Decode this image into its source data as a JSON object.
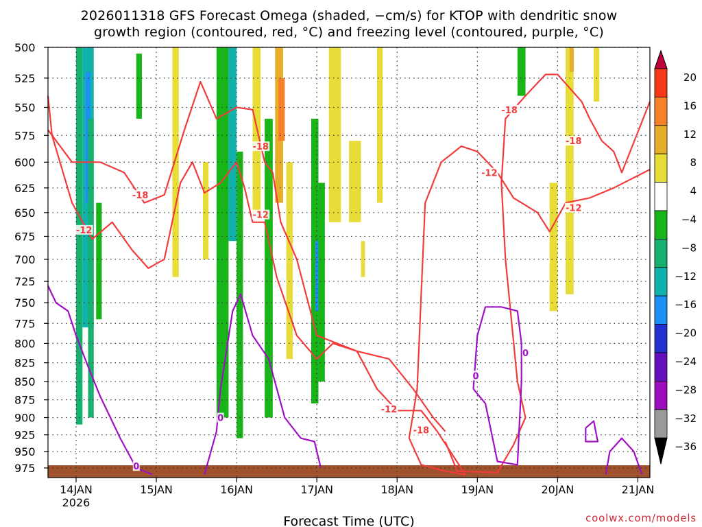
{
  "chart_data": {
    "type": "heatmap",
    "title_line1": "2026011318 GFS Forecast Omega (shaded, −cm/s) for KTOP with dendritic snow",
    "title_line2": "growth region (contoured, red, °C) and freezing level (contoured, purple, °C)",
    "xlabel": "Forecast Time (UTC)",
    "x_ticks": [
      "14JAN",
      "15JAN",
      "16JAN",
      "17JAN",
      "18JAN",
      "19JAN",
      "20JAN",
      "21JAN"
    ],
    "x_year_label": "2026",
    "x_range_days": [
      -0.35,
      7.15
    ],
    "y_ticks": [
      500,
      525,
      550,
      575,
      600,
      625,
      650,
      675,
      700,
      725,
      750,
      775,
      800,
      825,
      850,
      875,
      900,
      925,
      950,
      975
    ],
    "y_range_hpa": [
      500,
      990
    ],
    "y_scale": "log-pressure",
    "grid": true,
    "colorbar": {
      "labels": [
        "20",
        "16",
        "12",
        "8",
        "4",
        "−4",
        "−8",
        "−12",
        "−16",
        "−20",
        "−24",
        "−28",
        "−32",
        "−36"
      ],
      "colors": [
        "#c1003c",
        "#f23a1a",
        "#f5822a",
        "#e6ae2a",
        "#e8dc38",
        "#ffffff",
        "#19b419",
        "#17b06e",
        "#12b2ac",
        "#1e8ff5",
        "#2432ce",
        "#6410bb",
        "#9a0fb9",
        "#9a9a9a",
        "#000000"
      ]
    },
    "contour_labels": {
      "dgz_minus18": "-18",
      "dgz_minus12": "-12",
      "freezing_0": "0"
    },
    "omega_cells": [
      {
        "t": [
          0.0,
          0.08
        ],
        "p": [
          500,
          910
        ],
        "v": -10
      },
      {
        "t": [
          0.08,
          0.22
        ],
        "p": [
          500,
          780
        ],
        "v": -14
      },
      {
        "t": [
          0.12,
          0.18
        ],
        "p": [
          520,
          640
        ],
        "v": -18
      },
      {
        "t": [
          0.15,
          0.22
        ],
        "p": [
          560,
          900
        ],
        "v": -8
      },
      {
        "t": [
          0.25,
          0.32
        ],
        "p": [
          640,
          770
        ],
        "v": -6
      },
      {
        "t": [
          0.75,
          0.82
        ],
        "p": [
          505,
          560
        ],
        "v": -6
      },
      {
        "t": [
          1.2,
          1.28
        ],
        "p": [
          500,
          720
        ],
        "v": 4
      },
      {
        "t": [
          1.58,
          1.65
        ],
        "p": [
          600,
          700
        ],
        "v": 4
      },
      {
        "t": [
          1.75,
          1.9
        ],
        "p": [
          500,
          900
        ],
        "v": -6
      },
      {
        "t": [
          1.9,
          2.0
        ],
        "p": [
          500,
          680
        ],
        "v": -14
      },
      {
        "t": [
          2.0,
          2.08
        ],
        "p": [
          590,
          930
        ],
        "v": -6
      },
      {
        "t": [
          2.2,
          2.3
        ],
        "p": [
          500,
          650
        ],
        "v": 4
      },
      {
        "t": [
          2.35,
          2.45
        ],
        "p": [
          560,
          900
        ],
        "v": -6
      },
      {
        "t": [
          2.48,
          2.58
        ],
        "p": [
          500,
          640
        ],
        "v": 8
      },
      {
        "t": [
          2.52,
          2.6
        ],
        "p": [
          525,
          580
        ],
        "v": 12
      },
      {
        "t": [
          2.62,
          2.7
        ],
        "p": [
          600,
          820
        ],
        "v": 4
      },
      {
        "t": [
          2.93,
          3.02
        ],
        "p": [
          560,
          880
        ],
        "v": -6
      },
      {
        "t": [
          2.98,
          3.02
        ],
        "p": [
          680,
          760
        ],
        "v": -16
      },
      {
        "t": [
          3.02,
          3.1
        ],
        "p": [
          620,
          850
        ],
        "v": -6
      },
      {
        "t": [
          3.15,
          3.3
        ],
        "p": [
          500,
          660
        ],
        "v": 4
      },
      {
        "t": [
          3.4,
          3.55
        ],
        "p": [
          580,
          660
        ],
        "v": 4
      },
      {
        "t": [
          3.55,
          3.6
        ],
        "p": [
          680,
          720
        ],
        "v": 4
      },
      {
        "t": [
          3.75,
          3.82
        ],
        "p": [
          500,
          640
        ],
        "v": 4
      },
      {
        "t": [
          5.5,
          5.6
        ],
        "p": [
          500,
          540
        ],
        "v": -6
      },
      {
        "t": [
          5.9,
          6.0
        ],
        "p": [
          620,
          760
        ],
        "v": 4
      },
      {
        "t": [
          6.1,
          6.2
        ],
        "p": [
          500,
          740
        ],
        "v": 4
      },
      {
        "t": [
          6.15,
          6.2
        ],
        "p": [
          500,
          520
        ],
        "v": 8
      },
      {
        "t": [
          6.45,
          6.52
        ],
        "p": [
          500,
          545
        ],
        "v": 4
      }
    ],
    "dgz_minus18_upper": [
      [
        -0.35,
        570
      ],
      [
        -0.05,
        600
      ],
      [
        0.3,
        600
      ],
      [
        0.6,
        610
      ],
      [
        0.85,
        640
      ],
      [
        1.1,
        632
      ],
      [
        1.35,
        570
      ],
      [
        1.55,
        528
      ],
      [
        1.75,
        560
      ],
      [
        2.0,
        550
      ],
      [
        2.2,
        552
      ],
      [
        2.35,
        600
      ],
      [
        2.45,
        610
      ],
      [
        2.55,
        660
      ],
      [
        2.75,
        700
      ],
      [
        3.0,
        790
      ],
      [
        3.5,
        810
      ],
      [
        3.9,
        820
      ],
      [
        4.2,
        860
      ],
      [
        4.45,
        900
      ],
      [
        4.6,
        920
      ]
    ],
    "dgz_minus18_right": [
      [
        4.6,
        935
      ],
      [
        4.75,
        980
      ],
      [
        5.25,
        982
      ],
      [
        5.45,
        940
      ],
      [
        5.6,
        900
      ],
      [
        5.5,
        850
      ],
      [
        5.35,
        700
      ],
      [
        5.3,
        620
      ],
      [
        5.35,
        560
      ],
      [
        5.6,
        540
      ],
      [
        5.85,
        522
      ],
      [
        6.0,
        522
      ],
      [
        6.3,
        545
      ],
      [
        6.4,
        560
      ],
      [
        6.55,
        580
      ],
      [
        6.7,
        590
      ],
      [
        6.8,
        610
      ],
      [
        7.15,
        545
      ]
    ],
    "dgz_minus12_upper": [
      [
        -0.35,
        540
      ],
      [
        -0.3,
        575
      ],
      [
        -0.05,
        640
      ],
      [
        0.2,
        678
      ],
      [
        0.45,
        660
      ],
      [
        0.7,
        690
      ],
      [
        0.9,
        710
      ],
      [
        1.1,
        700
      ],
      [
        1.3,
        620
      ],
      [
        1.45,
        600
      ],
      [
        1.6,
        630
      ],
      [
        1.8,
        620
      ],
      [
        2.0,
        600
      ],
      [
        2.1,
        625
      ],
      [
        2.2,
        660
      ],
      [
        2.35,
        660
      ],
      [
        2.5,
        720
      ],
      [
        2.75,
        790
      ],
      [
        3.0,
        820
      ],
      [
        3.2,
        800
      ],
      [
        3.5,
        810
      ],
      [
        3.75,
        860
      ],
      [
        4.0,
        890
      ],
      [
        4.3,
        890
      ],
      [
        4.5,
        920
      ],
      [
        4.85,
        985
      ]
    ],
    "dgz_minus12_right": [
      [
        4.85,
        985
      ],
      [
        4.6,
        980
      ],
      [
        4.3,
        970
      ],
      [
        4.15,
        930
      ],
      [
        4.25,
        860
      ],
      [
        4.3,
        740
      ],
      [
        4.35,
        640
      ],
      [
        4.55,
        600
      ],
      [
        4.8,
        585
      ],
      [
        5.0,
        590
      ],
      [
        5.25,
        610
      ],
      [
        5.45,
        635
      ],
      [
        5.65,
        645
      ],
      [
        5.75,
        650
      ],
      [
        5.9,
        670
      ],
      [
        6.1,
        640
      ],
      [
        6.4,
        635
      ],
      [
        6.7,
        625
      ],
      [
        7.15,
        607
      ]
    ],
    "freezing_left": [
      [
        -0.35,
        730
      ],
      [
        -0.25,
        750
      ],
      [
        -0.1,
        760
      ],
      [
        0.0,
        790
      ],
      [
        0.15,
        830
      ],
      [
        0.3,
        870
      ],
      [
        0.55,
        930
      ],
      [
        0.75,
        975
      ],
      [
        0.95,
        985
      ]
    ],
    "freezing_mid": [
      [
        1.6,
        985
      ],
      [
        1.75,
        920
      ],
      [
        1.8,
        860
      ],
      [
        1.95,
        760
      ],
      [
        2.05,
        740
      ],
      [
        2.2,
        790
      ],
      [
        2.4,
        820
      ],
      [
        2.6,
        900
      ],
      [
        2.8,
        930
      ],
      [
        2.97,
        935
      ],
      [
        3.05,
        975
      ]
    ],
    "freezing_closed": [
      [
        4.95,
        860
      ],
      [
        5.0,
        790
      ],
      [
        5.1,
        755
      ],
      [
        5.3,
        755
      ],
      [
        5.5,
        760
      ],
      [
        5.55,
        800
      ],
      [
        5.55,
        850
      ],
      [
        5.5,
        970
      ],
      [
        5.25,
        965
      ],
      [
        5.1,
        880
      ],
      [
        4.95,
        860
      ]
    ],
    "freezing_small1": [
      [
        6.35,
        915
      ],
      [
        6.45,
        905
      ],
      [
        6.5,
        935
      ],
      [
        6.35,
        935
      ],
      [
        6.35,
        915
      ]
    ],
    "freezing_small2": [
      [
        6.6,
        985
      ],
      [
        6.65,
        950
      ],
      [
        6.8,
        930
      ],
      [
        6.95,
        950
      ],
      [
        7.05,
        985
      ]
    ]
  },
  "credit": "coolwx.com/models"
}
